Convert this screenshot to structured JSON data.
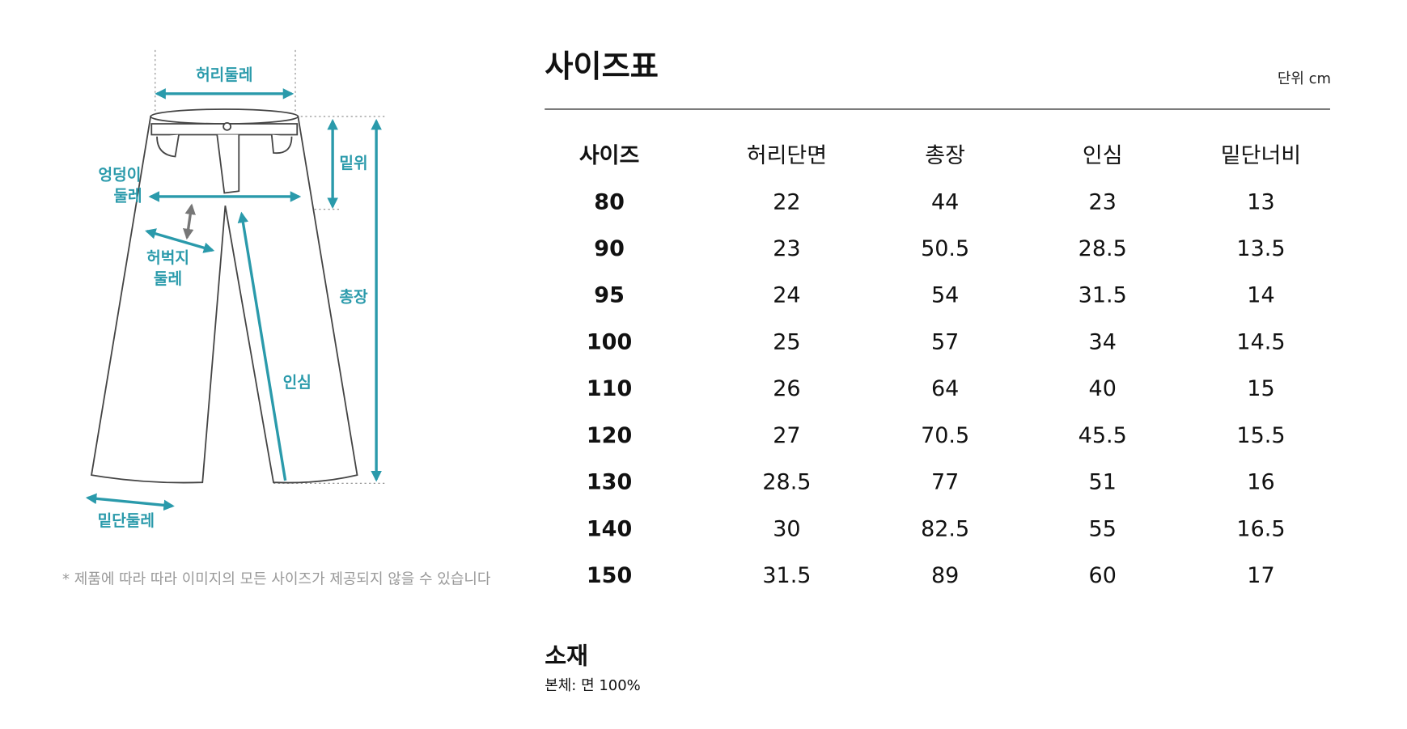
{
  "diagram": {
    "labels": {
      "waist": "허리둘레",
      "rise": "밑위",
      "hip": [
        "엉덩이",
        "둘레"
      ],
      "thigh": [
        "허벅지",
        "둘레"
      ],
      "length": "총장",
      "inseam": "인심",
      "hem": "밑단둘레"
    },
    "note": "* 제품에 따라 따라 이미지의 모든 사이즈가 제공되지 않을 수 있습니다"
  },
  "size_table": {
    "title": "사이즈표",
    "unit": "단위 cm",
    "columns": [
      "사이즈",
      "허리단면",
      "총장",
      "인심",
      "밑단너비"
    ],
    "rows": [
      [
        "80",
        "22",
        "44",
        "23",
        "13"
      ],
      [
        "90",
        "23",
        "50.5",
        "28.5",
        "13.5"
      ],
      [
        "95",
        "24",
        "54",
        "31.5",
        "14"
      ],
      [
        "100",
        "25",
        "57",
        "34",
        "14.5"
      ],
      [
        "110",
        "26",
        "64",
        "40",
        "15"
      ],
      [
        "120",
        "27",
        "70.5",
        "45.5",
        "15.5"
      ],
      [
        "130",
        "28.5",
        "77",
        "51",
        "16"
      ],
      [
        "140",
        "30",
        "82.5",
        "55",
        "16.5"
      ],
      [
        "150",
        "31.5",
        "89",
        "60",
        "17"
      ]
    ]
  },
  "material": {
    "title": "소재",
    "body": "본체: 면 100%"
  }
}
